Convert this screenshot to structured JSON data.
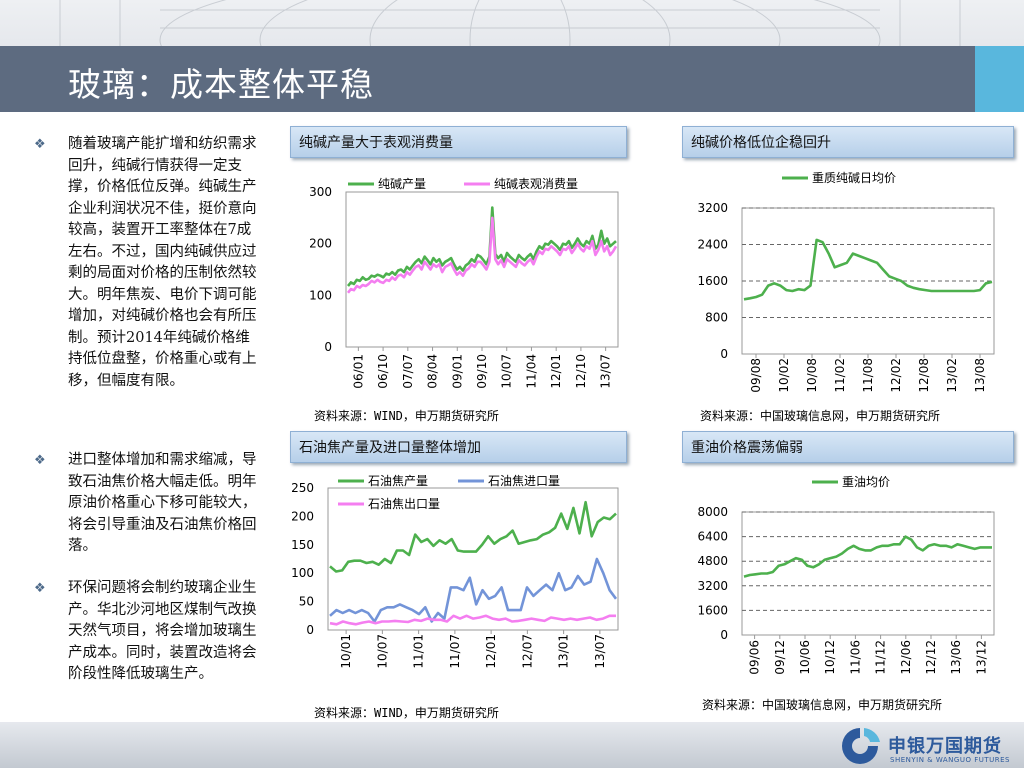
{
  "page": {
    "title": "玻璃：成本整体平稳",
    "bullets": [
      "随着玻璃产能扩增和纺织需求回升，纯碱行情获得一定支撑，价格低位反弹。纯碱生产企业利润状况不佳，挺价意向较高，装置开工率整体在7成左右。不过，国内纯碱供应过剩的局面对价格的压制依然较大。明年焦炭、电价下调可能增加，对纯碱价格也会有所压制。预计2014年纯碱价格维持低位盘整，价格重心或有上移，但幅度有限。",
      "进口整体增加和需求缩减，导致石油焦价格大幅走低。明年原油价格重心下移可能较大，将会引导重油及石油焦价格回落。",
      "环保问题将会制约玻璃企业生产。华北沙河地区煤制气改换天然气项目，将会增加玻璃生产成本。同时，装置改造将会阶段性降低玻璃生产。"
    ],
    "bullet_icon": "diamond-bullet-icon",
    "logo": {
      "cn": "申银万国期货",
      "en": "SHENYIN & WANGUO FUTURES"
    }
  },
  "panels": {
    "p1": {
      "title": "纯碱产量大于表观消费量",
      "source": "资料来源：WIND，申万期货研究所"
    },
    "p2": {
      "title": "纯碱价格低位企稳回升",
      "source": "资料来源：中国玻璃信息网，申万期货研究所"
    },
    "p3": {
      "title": "石油焦产量及进口量整体增加",
      "source": "资料来源：WIND，申万期货研究所"
    },
    "p4": {
      "title": "重油价格震荡偏弱",
      "source": "资料来源：中国玻璃信息网，申万期货研究所"
    }
  },
  "colors": {
    "green": "#4db04d",
    "pink": "#f47ef0",
    "blue": "#7394d8",
    "header": "#5d6b80",
    "accent": "#59b7dd"
  },
  "chart_data": [
    {
      "id": "soda-output-vs-consumption",
      "type": "line",
      "title": "",
      "xlabel": "",
      "ylabel": "",
      "ylim": [
        0,
        300
      ],
      "yticks": [
        "0",
        "100",
        "200",
        "300"
      ],
      "xticks": [
        "06/01",
        "06/10",
        "07/07",
        "08/04",
        "09/01",
        "09/10",
        "10/07",
        "11/04",
        "12/01",
        "12/10",
        "13/07"
      ],
      "legend": "top",
      "grid": false,
      "series": [
        {
          "name": "纯碱产量",
          "color": "#4db04d",
          "values": [
            118,
            125,
            122,
            130,
            128,
            135,
            130,
            132,
            138,
            136,
            140,
            138,
            135,
            142,
            140,
            145,
            140,
            148,
            150,
            145,
            155,
            150,
            158,
            165,
            170,
            162,
            175,
            168,
            160,
            172,
            165,
            170,
            158,
            165,
            168,
            172,
            160,
            150,
            155,
            148,
            158,
            162,
            170,
            165,
            178,
            175,
            168,
            160,
            175,
            270,
            180,
            172,
            178,
            165,
            182,
            175,
            170,
            165,
            178,
            172,
            168,
            175,
            180,
            170,
            185,
            195,
            190,
            200,
            198,
            205,
            200,
            195,
            188,
            200,
            198,
            205,
            192,
            200,
            210,
            200,
            195,
            205,
            200,
            215,
            190,
            198,
            225,
            200,
            210,
            195,
            200,
            205
          ]
        },
        {
          "name": "纯碱表观消费量",
          "color": "#f47ef0",
          "values": [
            105,
            112,
            110,
            118,
            115,
            120,
            118,
            122,
            128,
            125,
            130,
            126,
            124,
            130,
            128,
            135,
            130,
            138,
            140,
            135,
            145,
            140,
            148,
            155,
            158,
            150,
            165,
            158,
            150,
            160,
            155,
            160,
            145,
            155,
            158,
            162,
            150,
            140,
            145,
            138,
            148,
            152,
            160,
            155,
            165,
            165,
            158,
            150,
            165,
            250,
            170,
            160,
            168,
            155,
            170,
            165,
            160,
            155,
            168,
            162,
            158,
            165,
            170,
            160,
            175,
            185,
            180,
            190,
            188,
            195,
            190,
            185,
            178,
            190,
            188,
            195,
            182,
            190,
            200,
            190,
            185,
            195,
            190,
            205,
            178,
            188,
            205,
            185,
            195,
            178,
            185,
            195
          ]
        }
      ]
    },
    {
      "id": "heavy-soda-daily-price",
      "type": "line",
      "title": "",
      "xlabel": "",
      "ylabel": "",
      "ylim": [
        0,
        3200
      ],
      "yticks": [
        "0",
        "800",
        "1600",
        "2400",
        "3200"
      ],
      "xticks": [
        "09/08",
        "10/02",
        "10/08",
        "11/02",
        "11/08",
        "12/02",
        "12/08",
        "13/02",
        "13/08"
      ],
      "legend": "top",
      "grid": true,
      "series": [
        {
          "name": "重质纯碱日均价",
          "color": "#4db04d",
          "values": [
            1200,
            1220,
            1250,
            1300,
            1500,
            1550,
            1500,
            1400,
            1380,
            1420,
            1400,
            1500,
            2500,
            2450,
            2200,
            1900,
            1950,
            2000,
            2200,
            2150,
            2100,
            2050,
            2000,
            1850,
            1700,
            1650,
            1600,
            1500,
            1450,
            1420,
            1400,
            1380,
            1380,
            1380,
            1380,
            1380,
            1380,
            1380,
            1380,
            1400,
            1550,
            1580
          ]
        }
      ]
    },
    {
      "id": "petcoke-output-import",
      "type": "line",
      "title": "",
      "xlabel": "",
      "ylabel": "",
      "ylim": [
        0,
        250
      ],
      "yticks": [
        "0",
        "50",
        "100",
        "150",
        "200",
        "250"
      ],
      "xticks": [
        "10/01",
        "10/07",
        "11/01",
        "11/07",
        "12/01",
        "12/07",
        "13/01",
        "13/07"
      ],
      "legend": "top",
      "grid": false,
      "series": [
        {
          "name": "石油焦产量",
          "color": "#4db04d",
          "values": [
            112,
            103,
            105,
            120,
            122,
            122,
            118,
            120,
            115,
            125,
            118,
            140,
            140,
            132,
            168,
            155,
            160,
            148,
            158,
            152,
            160,
            140,
            138,
            138,
            138,
            150,
            165,
            152,
            160,
            165,
            175,
            152,
            155,
            158,
            160,
            168,
            172,
            180,
            205,
            178,
            215,
            170,
            225,
            165,
            190,
            198,
            195,
            205
          ]
        },
        {
          "name": "石油焦进口量",
          "color": "#7394d8",
          "values": [
            25,
            35,
            30,
            35,
            30,
            35,
            30,
            15,
            35,
            40,
            40,
            45,
            40,
            35,
            28,
            40,
            15,
            30,
            20,
            75,
            75,
            70,
            92,
            45,
            70,
            55,
            60,
            75,
            35,
            35,
            35,
            75,
            60,
            70,
            80,
            70,
            100,
            70,
            75,
            95,
            80,
            85,
            125,
            100,
            70,
            55
          ]
        },
        {
          "name": "石油焦出口量",
          "color": "#f47ef0",
          "values": [
            12,
            10,
            15,
            12,
            10,
            13,
            15,
            12,
            15,
            15,
            16,
            15,
            14,
            18,
            16,
            20,
            18,
            18,
            15,
            25,
            20,
            25,
            20,
            22,
            25,
            20,
            18,
            20,
            15,
            16,
            18,
            20,
            18,
            16,
            22,
            20,
            18,
            20,
            18,
            20,
            22,
            18,
            20,
            25,
            25
          ]
        }
      ]
    },
    {
      "id": "heavy-oil-price",
      "type": "line",
      "title": "",
      "xlabel": "",
      "ylabel": "",
      "ylim": [
        0,
        8000
      ],
      "yticks": [
        "0",
        "1600",
        "3200",
        "4800",
        "6400",
        "8000"
      ],
      "xticks": [
        "09/06",
        "09/12",
        "10/06",
        "10/12",
        "11/06",
        "11/12",
        "12/06",
        "12/12",
        "13/06",
        "13/12"
      ],
      "legend": "top",
      "grid": true,
      "series": [
        {
          "name": "重油均价",
          "color": "#4db04d",
          "values": [
            3800,
            3900,
            3950,
            4000,
            4000,
            4100,
            4500,
            4600,
            4800,
            5000,
            4900,
            4500,
            4400,
            4600,
            4900,
            5000,
            5100,
            5300,
            5600,
            5800,
            5600,
            5500,
            5500,
            5700,
            5800,
            5800,
            5900,
            5900,
            6400,
            6200,
            5700,
            5500,
            5800,
            5900,
            5800,
            5800,
            5700,
            5900,
            5800,
            5700,
            5600,
            5700,
            5700,
            5700
          ]
        }
      ]
    }
  ]
}
